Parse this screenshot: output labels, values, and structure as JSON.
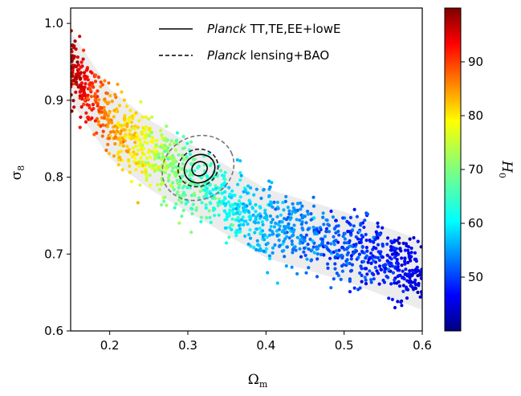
{
  "chart_data": {
    "type": "scatter",
    "title": "",
    "xlabel": "Ω",
    "xlabel_sub": "m",
    "ylabel": "σ",
    "ylabel_sub": "8",
    "xlim": [
      0.15,
      0.6
    ],
    "ylim": [
      0.6,
      1.02
    ],
    "x_ticks": [
      0.2,
      0.3,
      0.4,
      0.5,
      0.6
    ],
    "x_tick_labels": [
      "0.2",
      "0.3",
      "0.4",
      "0.5",
      "0.6"
    ],
    "y_ticks": [
      0.6,
      0.7,
      0.8,
      0.9,
      1.0
    ],
    "y_tick_labels": [
      "0.6",
      "0.7",
      "0.8",
      "0.9",
      "1.0"
    ],
    "grid": false,
    "colorbar": {
      "label": "H",
      "label_sub": "0",
      "range": [
        40,
        100
      ],
      "ticks": [
        50,
        60,
        70,
        80,
        90
      ],
      "tick_labels": [
        "50",
        "60",
        "70",
        "80",
        "90"
      ],
      "colormap": "jet"
    },
    "scatter_trend": {
      "description_points": [
        {
          "omega_m": 0.16,
          "sigma_8": 0.93,
          "H0": 95
        },
        {
          "omega_m": 0.2,
          "sigma_8": 0.87,
          "H0": 84
        },
        {
          "omega_m": 0.25,
          "sigma_8": 0.83,
          "H0": 75
        },
        {
          "omega_m": 0.3,
          "sigma_8": 0.8,
          "H0": 68
        },
        {
          "omega_m": 0.35,
          "sigma_8": 0.77,
          "H0": 63
        },
        {
          "omega_m": 0.4,
          "sigma_8": 0.74,
          "H0": 58
        },
        {
          "omega_m": 0.5,
          "sigma_8": 0.71,
          "H0": 52
        },
        {
          "omega_m": 0.58,
          "sigma_8": 0.68,
          "H0": 47
        }
      ]
    },
    "series": [
      {
        "name": "Planck TT,TE,EE+lowE",
        "name_italic": "Planck",
        "name_rest": " TT,TE,EE+lowE",
        "style": "solid",
        "color": "#000000",
        "center": [
          0.315,
          0.811
        ],
        "contours": [
          {
            "level": "68%",
            "radius_x": 0.01,
            "radius_y": 0.009
          },
          {
            "level": "95%",
            "radius_x": 0.02,
            "radius_y": 0.018
          }
        ]
      },
      {
        "name": "Planck lensing+BAO",
        "name_italic": "Planck",
        "name_rest": " lensing+BAO",
        "style": "dashed",
        "color": "#000000",
        "center": [
          0.313,
          0.812
        ],
        "contours": [
          {
            "level": "68%",
            "radius_x": 0.026,
            "radius_y": 0.024,
            "color": "#222222"
          },
          {
            "level": "95%",
            "radius_x": 0.047,
            "radius_y": 0.041,
            "color": "#777777"
          }
        ]
      }
    ],
    "legend_position": "top-right"
  }
}
